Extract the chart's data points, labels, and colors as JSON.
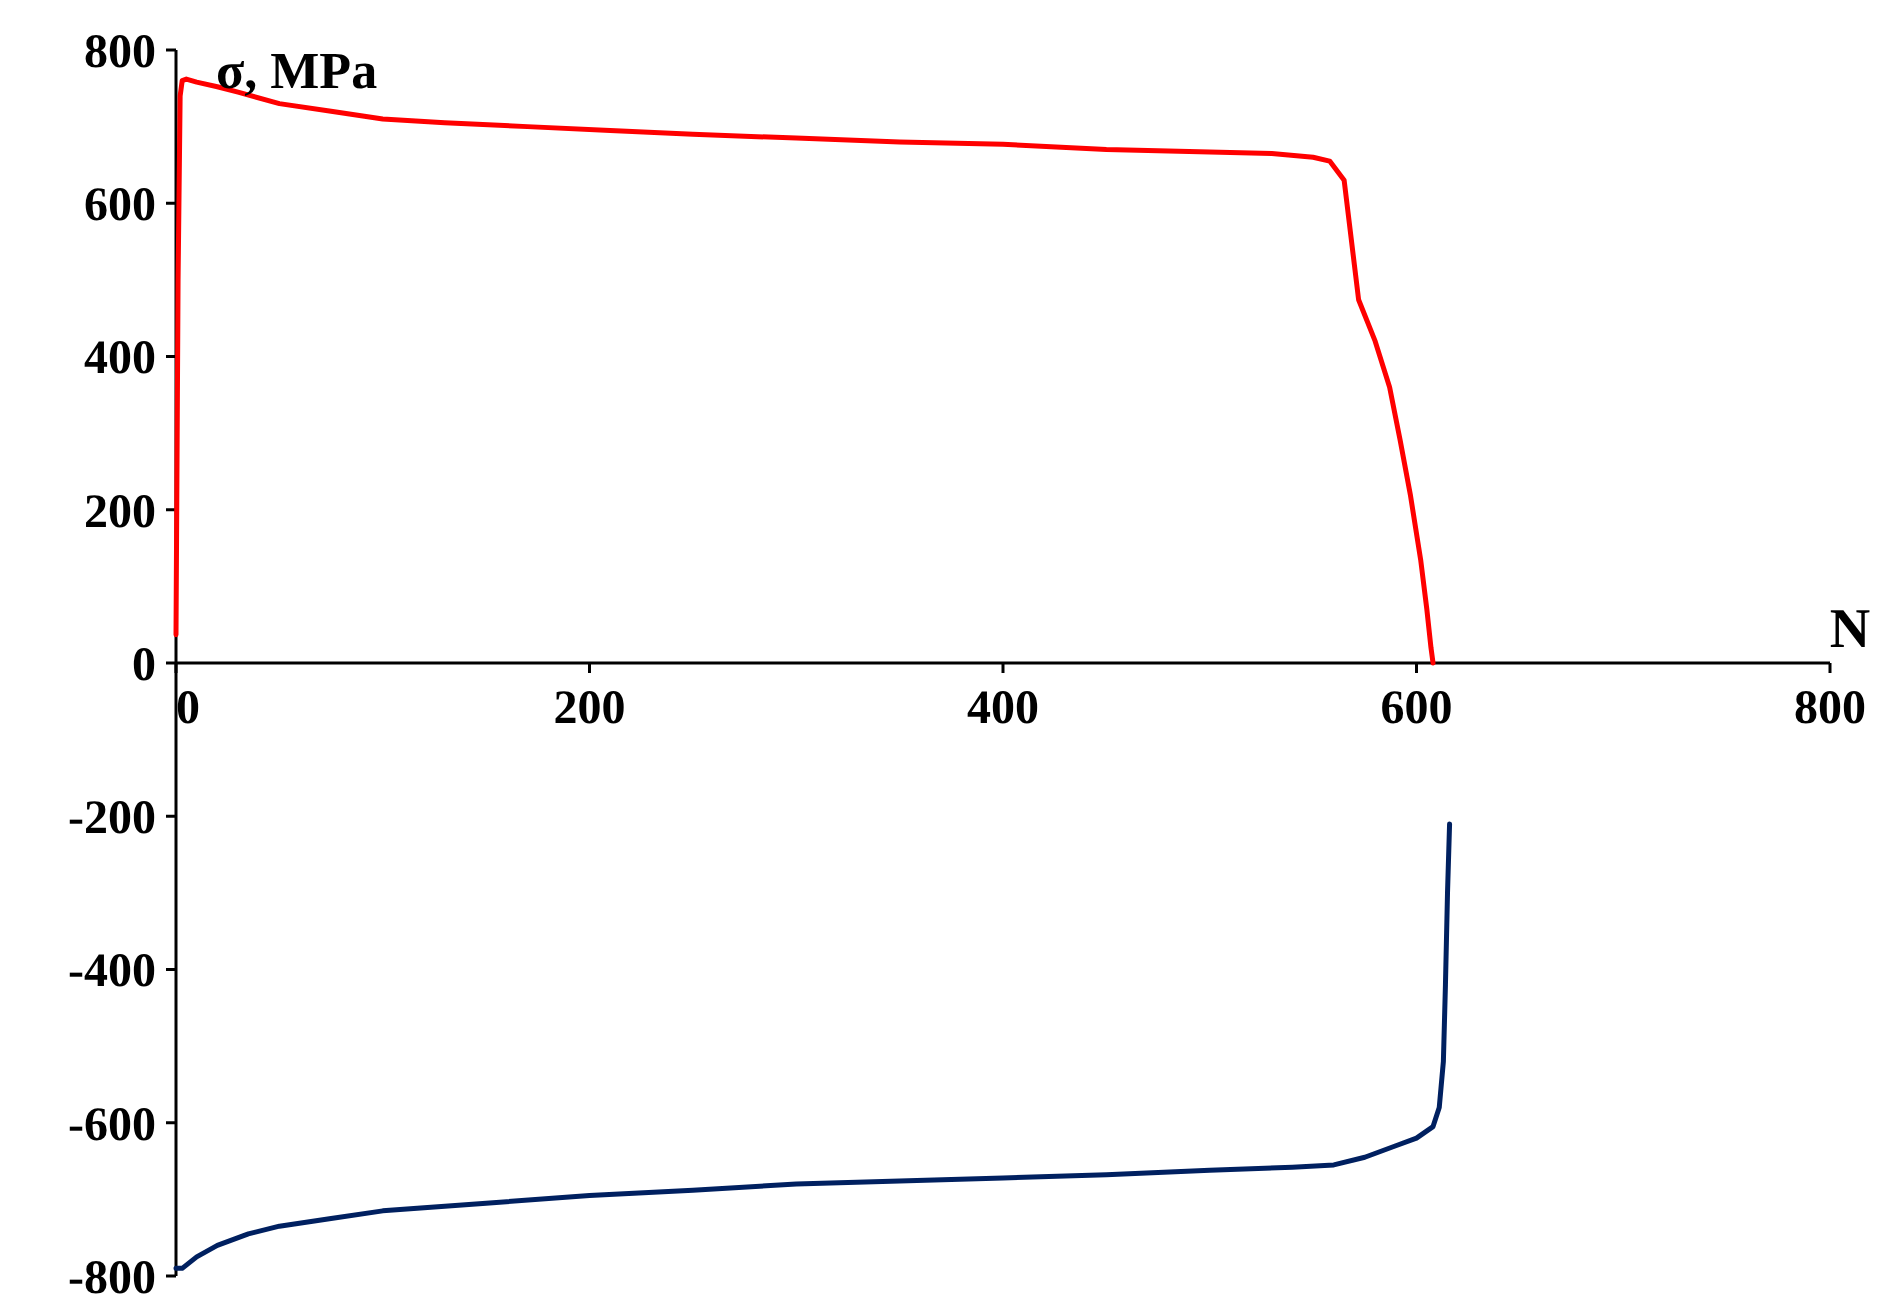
{
  "chart_data": {
    "type": "line",
    "xlabel": "N",
    "ylabel": "σ, MPa",
    "xlim": [
      0,
      800
    ],
    "ylim": [
      -800,
      800
    ],
    "xticks": [
      0,
      200,
      400,
      600,
      800
    ],
    "yticks": [
      -800,
      -600,
      -400,
      -200,
      0,
      200,
      400,
      600,
      800
    ],
    "marker": "none",
    "line_style": "solid",
    "series": [
      {
        "color": "#ff0000",
        "x": [
          0,
          1,
          2,
          3,
          5,
          10,
          20,
          30,
          50,
          75,
          100,
          130,
          170,
          210,
          250,
          300,
          350,
          400,
          450,
          500,
          530,
          550,
          558,
          565,
          572,
          580,
          587,
          592,
          597,
          602,
          605,
          607,
          608
        ],
        "values": [
          37,
          500,
          740,
          760,
          762,
          758,
          752,
          745,
          730,
          720,
          710,
          705,
          700,
          695,
          690,
          685,
          680,
          677,
          670,
          667,
          665,
          660,
          655,
          630,
          474,
          420,
          360,
          292,
          220,
          135,
          70,
          20,
          0
        ]
      },
      {
        "color": "#002060",
        "x": [
          0,
          3,
          10,
          20,
          35,
          50,
          75,
          100,
          150,
          200,
          250,
          300,
          350,
          400,
          450,
          500,
          540,
          560,
          575,
          590,
          600,
          608,
          611,
          613,
          614,
          615,
          616
        ],
        "values": [
          -790,
          -790,
          -775,
          -760,
          -745,
          -735,
          -725,
          -715,
          -705,
          -695,
          -688,
          -680,
          -676,
          -672,
          -668,
          -662,
          -658,
          -655,
          -645,
          -630,
          -620,
          -605,
          -580,
          -520,
          -420,
          -300,
          -210
        ]
      }
    ]
  }
}
